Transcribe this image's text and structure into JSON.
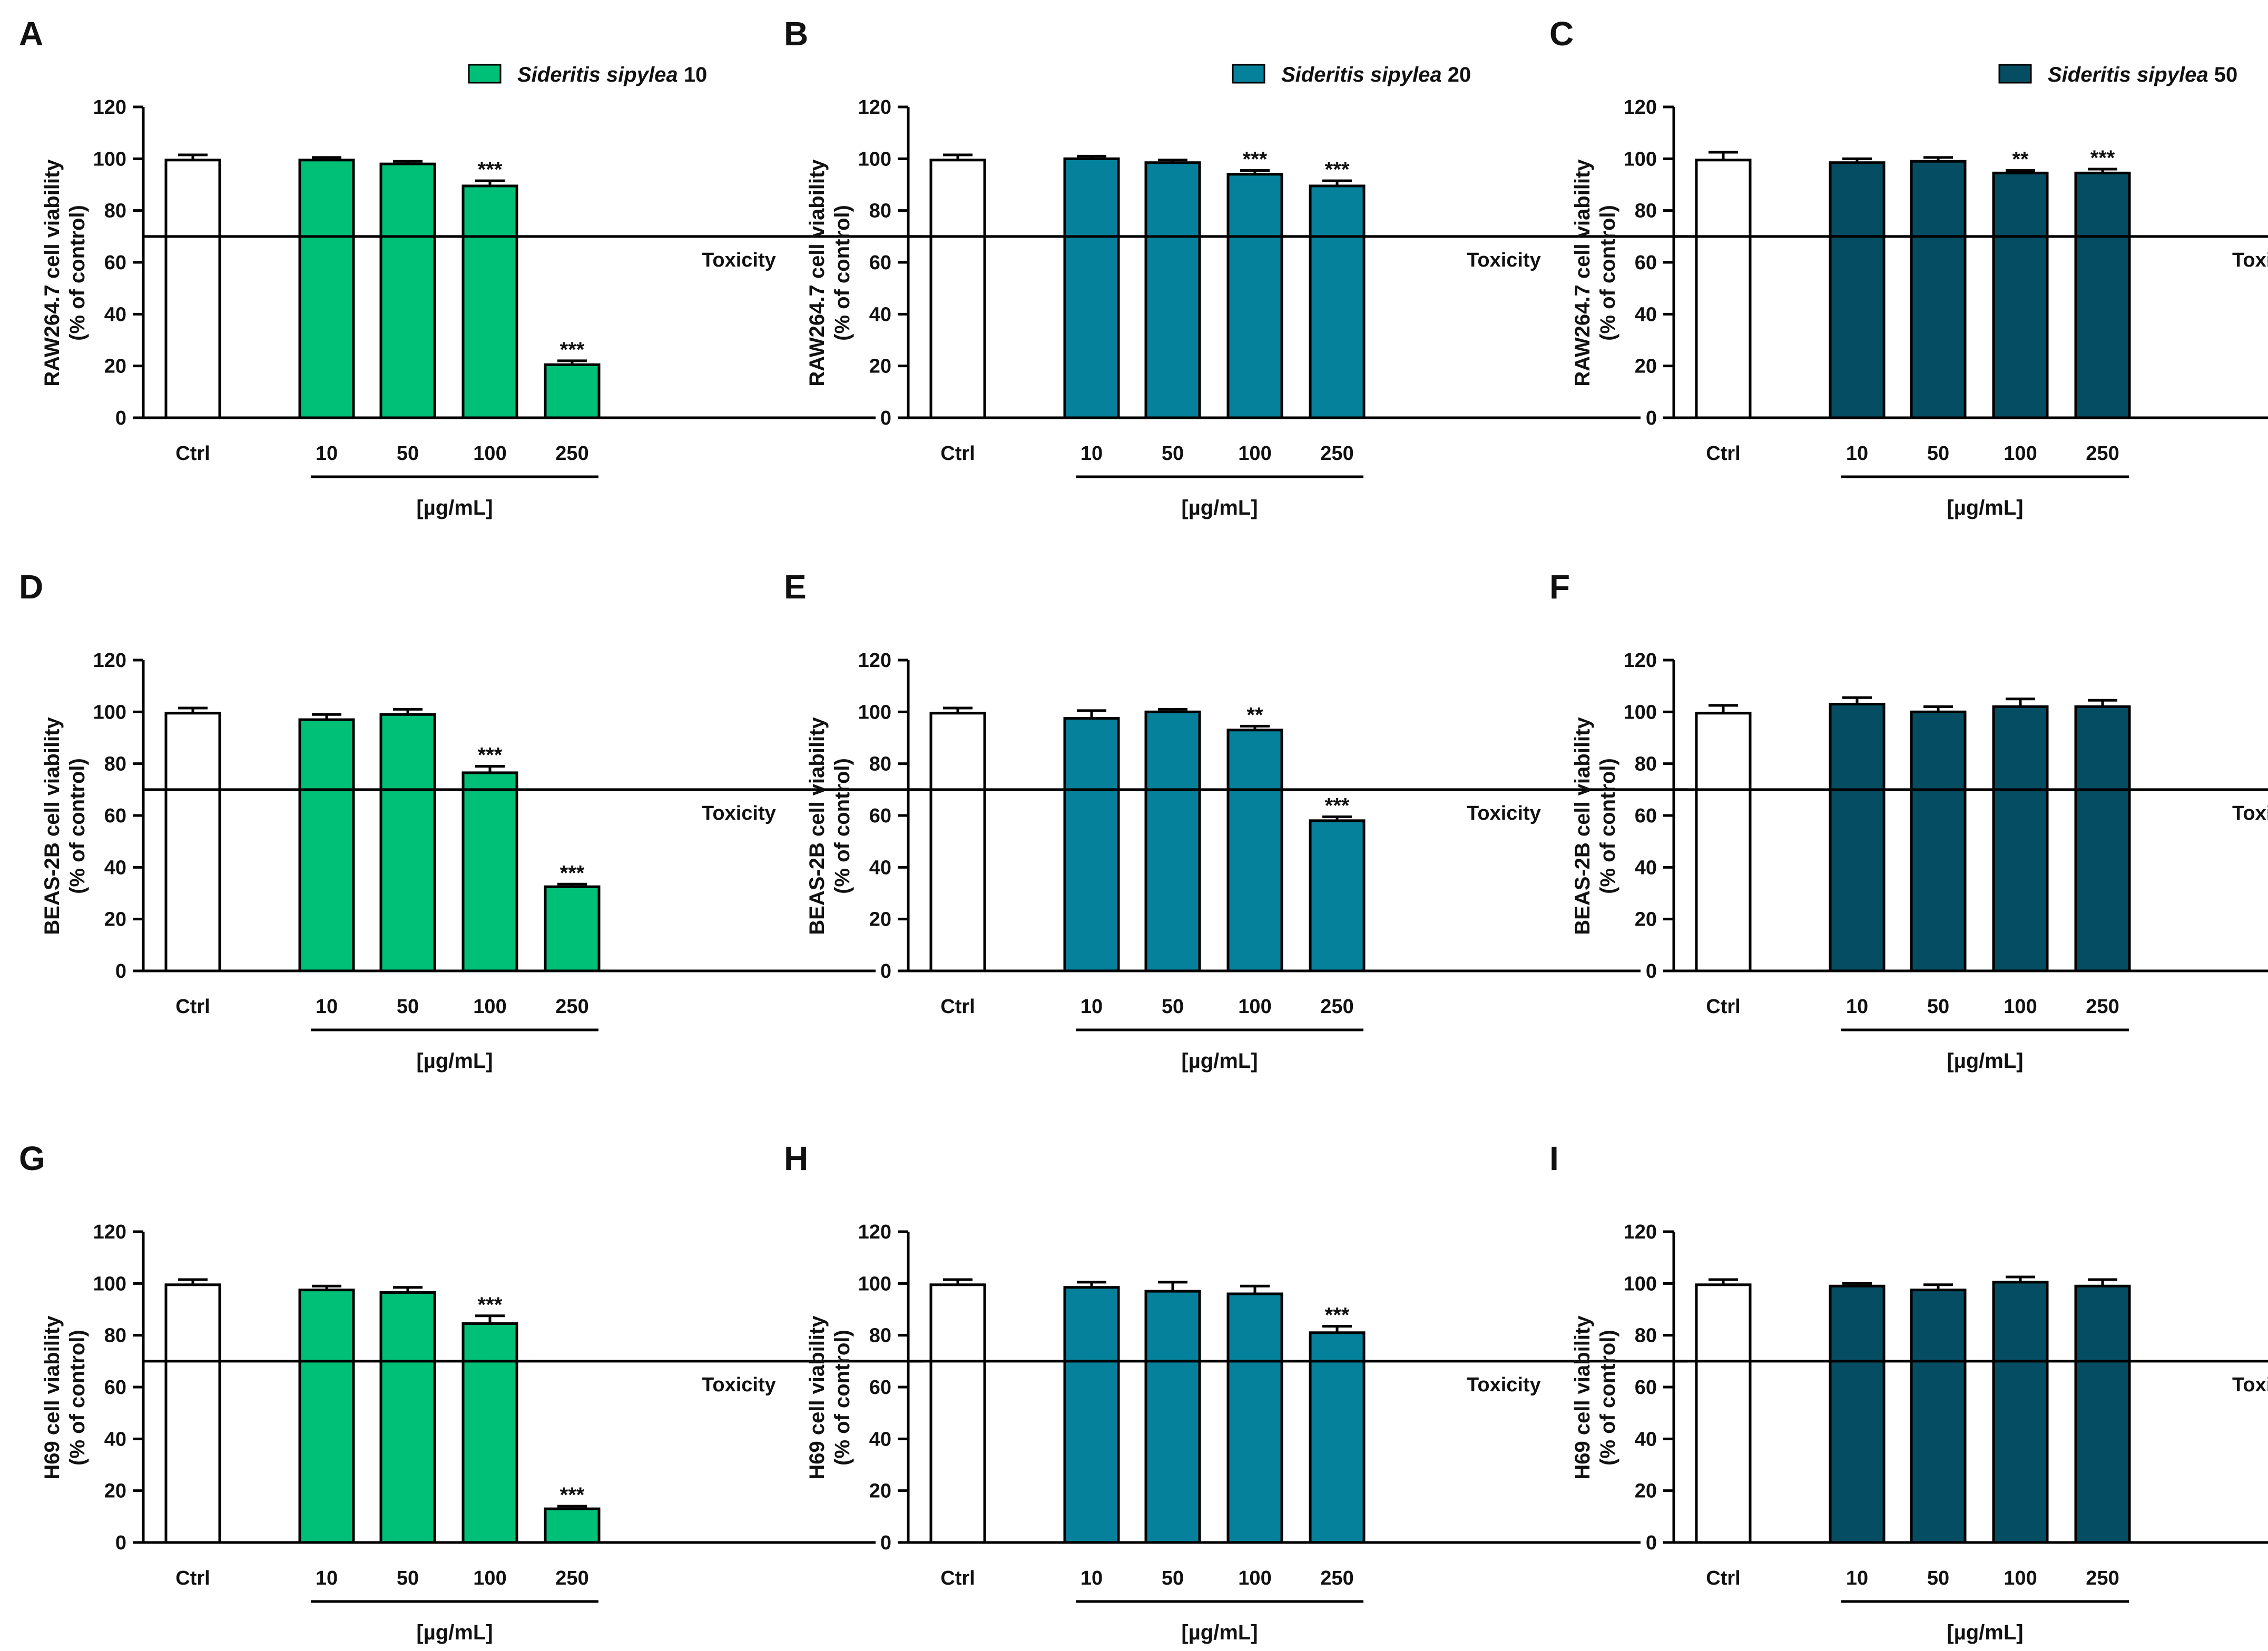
{
  "figure": {
    "x_unit_label": "[µg/mL]",
    "toxicity_label": "Toxicity",
    "ctrl_label": "Ctrl",
    "colors": {
      "green": "#00BF77",
      "teal": "#06819B",
      "dark": "#054D62",
      "ctrl": "#FFFFFF",
      "axis": "#000000"
    },
    "legends": [
      {
        "italic": "Sideritis sipylea",
        "suffix": " 10",
        "color": "#00BF77"
      },
      {
        "italic": "Sideritis sipylea",
        "suffix": " 20",
        "color": "#06819B"
      },
      {
        "italic": "Sideritis sipylea",
        "suffix": " 50",
        "color": "#054D62"
      }
    ]
  },
  "chart_data": [
    {
      "panel": "A",
      "type": "bar",
      "ylabel_line1": "RAW264.7 cell viability",
      "ylabel_line2": "(% of control)",
      "ylim": [
        0,
        120
      ],
      "yticks": [
        0,
        20,
        40,
        60,
        80,
        100,
        120
      ],
      "toxicity_threshold": 70,
      "categories": [
        "Ctrl",
        "10",
        "50",
        "100",
        "250"
      ],
      "values": [
        99.5,
        99.5,
        98,
        89.5,
        20.5
      ],
      "errors": [
        2,
        1,
        1,
        2,
        1.5
      ],
      "significance": [
        "",
        "",
        "",
        "***",
        "***"
      ],
      "series_color": "#00BF77"
    },
    {
      "panel": "B",
      "type": "bar",
      "ylabel_line1": "RAW264.7 cell viability",
      "ylabel_line2": "(% of control)",
      "ylim": [
        0,
        120
      ],
      "yticks": [
        0,
        20,
        40,
        60,
        80,
        100,
        120
      ],
      "toxicity_threshold": 70,
      "categories": [
        "Ctrl",
        "10",
        "50",
        "100",
        "250"
      ],
      "values": [
        99.5,
        100,
        98.5,
        94,
        89.5
      ],
      "errors": [
        2,
        1,
        1,
        1.5,
        2
      ],
      "significance": [
        "",
        "",
        "",
        "***",
        "***"
      ],
      "series_color": "#06819B"
    },
    {
      "panel": "C",
      "type": "bar",
      "ylabel_line1": "RAW264.7 cell viability",
      "ylabel_line2": "(% of control)",
      "ylim": [
        0,
        120
      ],
      "yticks": [
        0,
        20,
        40,
        60,
        80,
        100,
        120
      ],
      "toxicity_threshold": 70,
      "categories": [
        "Ctrl",
        "10",
        "50",
        "100",
        "250"
      ],
      "values": [
        99.5,
        98.5,
        99,
        94.5,
        94.5
      ],
      "errors": [
        3,
        1.5,
        1.5,
        1,
        1.5
      ],
      "significance": [
        "",
        "",
        "",
        "**",
        "***"
      ],
      "series_color": "#054D62"
    },
    {
      "panel": "D",
      "type": "bar",
      "ylabel_line1": "BEAS-2B cell viability",
      "ylabel_line2": "(% of control)",
      "ylim": [
        0,
        120
      ],
      "yticks": [
        0,
        20,
        40,
        60,
        80,
        100,
        120
      ],
      "toxicity_threshold": 70,
      "categories": [
        "Ctrl",
        "10",
        "50",
        "100",
        "250"
      ],
      "values": [
        99.5,
        97,
        99,
        76.5,
        32.5
      ],
      "errors": [
        2,
        2,
        2,
        2.5,
        1
      ],
      "significance": [
        "",
        "",
        "",
        "***",
        "***"
      ],
      "series_color": "#00BF77"
    },
    {
      "panel": "E",
      "type": "bar",
      "ylabel_line1": "BEAS-2B cell viability",
      "ylabel_line2": "(% of control)",
      "ylim": [
        0,
        120
      ],
      "yticks": [
        0,
        20,
        40,
        60,
        80,
        100,
        120
      ],
      "toxicity_threshold": 70,
      "categories": [
        "Ctrl",
        "10",
        "50",
        "100",
        "250"
      ],
      "values": [
        99.5,
        97.5,
        100,
        93,
        58
      ],
      "errors": [
        2,
        3,
        1,
        1.5,
        1.5
      ],
      "significance": [
        "",
        "",
        "",
        "**",
        "***"
      ],
      "series_color": "#06819B"
    },
    {
      "panel": "F",
      "type": "bar",
      "ylabel_line1": "BEAS-2B cell viability",
      "ylabel_line2": "(% of control)",
      "ylim": [
        0,
        120
      ],
      "yticks": [
        0,
        20,
        40,
        60,
        80,
        100,
        120
      ],
      "toxicity_threshold": 70,
      "categories": [
        "Ctrl",
        "10",
        "50",
        "100",
        "250"
      ],
      "values": [
        99.5,
        103,
        100,
        102,
        102
      ],
      "errors": [
        3,
        2.5,
        2,
        3,
        2.5
      ],
      "significance": [
        "",
        "",
        "",
        "",
        ""
      ],
      "series_color": "#054D62"
    },
    {
      "panel": "G",
      "type": "bar",
      "ylabel_line1": "H69 cell viability",
      "ylabel_line2": "(% of control)",
      "ylim": [
        0,
        120
      ],
      "yticks": [
        0,
        20,
        40,
        60,
        80,
        100,
        120
      ],
      "toxicity_threshold": 70,
      "categories": [
        "Ctrl",
        "10",
        "50",
        "100",
        "250"
      ],
      "values": [
        99.5,
        97.5,
        96.5,
        84.5,
        13
      ],
      "errors": [
        2,
        1.5,
        2,
        3,
        1
      ],
      "significance": [
        "",
        "",
        "",
        "***",
        "***"
      ],
      "series_color": "#00BF77"
    },
    {
      "panel": "H",
      "type": "bar",
      "ylabel_line1": "H69 cell viability",
      "ylabel_line2": "(% of control)",
      "ylim": [
        0,
        120
      ],
      "yticks": [
        0,
        20,
        40,
        60,
        80,
        100,
        120
      ],
      "toxicity_threshold": 70,
      "categories": [
        "Ctrl",
        "10",
        "50",
        "100",
        "250"
      ],
      "values": [
        99.5,
        98.5,
        97,
        96,
        81
      ],
      "errors": [
        2,
        2,
        3.5,
        3,
        2.5
      ],
      "significance": [
        "",
        "",
        "",
        "",
        "***"
      ],
      "series_color": "#06819B"
    },
    {
      "panel": "I",
      "type": "bar",
      "ylabel_line1": "H69 cell viability",
      "ylabel_line2": "(% of control)",
      "ylim": [
        0,
        120
      ],
      "yticks": [
        0,
        20,
        40,
        60,
        80,
        100,
        120
      ],
      "toxicity_threshold": 70,
      "categories": [
        "Ctrl",
        "10",
        "50",
        "100",
        "250"
      ],
      "values": [
        99.5,
        99,
        97.5,
        100.5,
        99
      ],
      "errors": [
        2,
        1,
        2,
        2,
        2.5
      ],
      "significance": [
        "",
        "",
        "",
        "",
        ""
      ],
      "series_color": "#054D62"
    }
  ]
}
